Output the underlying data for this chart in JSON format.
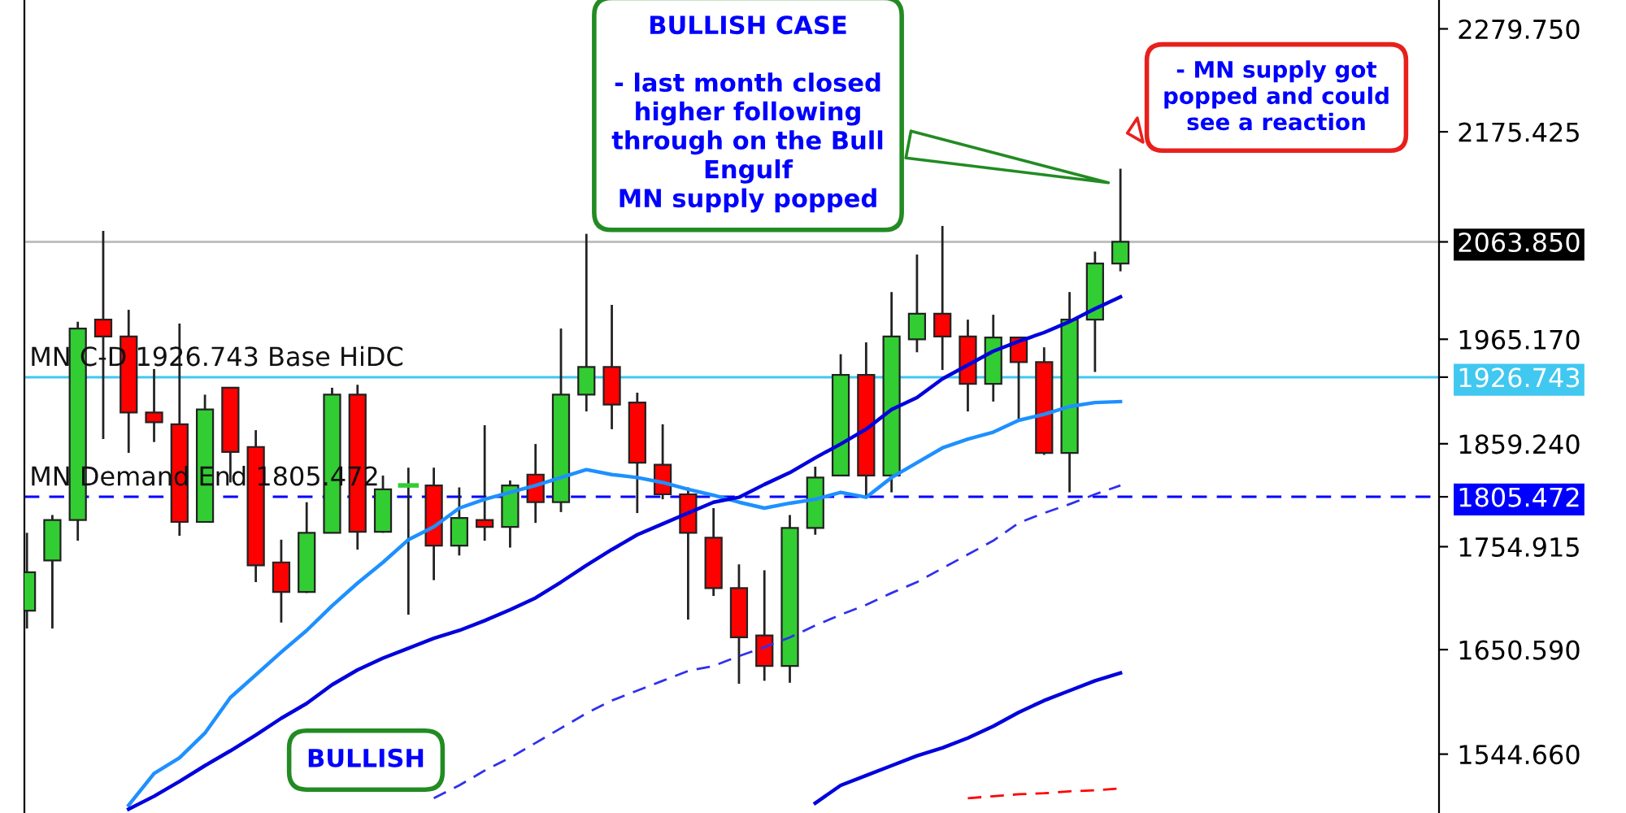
{
  "chart_data": {
    "type": "candlestick",
    "categories": [
      null,
      null,
      null,
      null,
      null,
      null,
      null,
      null,
      null,
      null,
      null,
      null,
      null,
      null,
      null,
      null,
      null,
      null,
      null,
      null,
      null,
      null,
      null,
      null,
      null,
      null,
      null,
      null,
      null,
      null,
      null,
      null,
      null,
      null,
      null,
      null,
      null,
      null,
      null,
      null,
      null,
      null,
      null,
      null
    ],
    "ohlc": [
      [
        1690,
        1769,
        1672,
        1729
      ],
      [
        1741,
        1787,
        1672,
        1782
      ],
      [
        1782,
        1983,
        1761,
        1976
      ],
      [
        1985,
        2075,
        1864,
        1968
      ],
      [
        1968,
        1995,
        1850,
        1891
      ],
      [
        1891,
        1935,
        1861,
        1881
      ],
      [
        1879,
        1981,
        1766,
        1780
      ],
      [
        1780,
        1909,
        1780,
        1894
      ],
      [
        1916,
        1916,
        1820,
        1851
      ],
      [
        1856,
        1873,
        1719,
        1736
      ],
      [
        1739,
        1762,
        1678,
        1709
      ],
      [
        1709,
        1800,
        1708,
        1769
      ],
      [
        1769,
        1916,
        1769,
        1909
      ],
      [
        1909,
        1919,
        1752,
        1770
      ],
      [
        1770,
        1827,
        1769,
        1813
      ],
      [
        1817,
        1835,
        1686,
        1817
      ],
      [
        1817,
        1835,
        1721,
        1756
      ],
      [
        1756,
        1815,
        1746,
        1784
      ],
      [
        1782,
        1878,
        1761,
        1775
      ],
      [
        1775,
        1822,
        1754,
        1817
      ],
      [
        1828,
        1859,
        1779,
        1800
      ],
      [
        1800,
        1976,
        1790,
        1909
      ],
      [
        1909,
        2072,
        1892,
        1937
      ],
      [
        1937,
        2000,
        1874,
        1899
      ],
      [
        1901,
        1911,
        1789,
        1840
      ],
      [
        1838,
        1879,
        1803,
        1808
      ],
      [
        1808,
        1815,
        1681,
        1769
      ],
      [
        1764,
        1794,
        1705,
        1713
      ],
      [
        1713,
        1737,
        1616,
        1663
      ],
      [
        1665,
        1731,
        1619,
        1634
      ],
      [
        1634,
        1787,
        1617,
        1774
      ],
      [
        1774,
        1836,
        1767,
        1825
      ],
      [
        1827,
        1950,
        1827,
        1929
      ],
      [
        1929,
        1962,
        1805,
        1827
      ],
      [
        1827,
        2013,
        1810,
        1968
      ],
      [
        1965,
        2051,
        1952,
        1991
      ],
      [
        1991,
        2080,
        1934,
        1968
      ],
      [
        1968,
        1985,
        1892,
        1920
      ],
      [
        1920,
        1990,
        1902,
        1967
      ],
      [
        1967,
        1967,
        1884,
        1942
      ],
      [
        1942,
        1957,
        1848,
        1850
      ],
      [
        1850,
        2013,
        1810,
        1985
      ],
      [
        1985,
        2054,
        1932,
        2042
      ],
      [
        2042,
        2138,
        2034,
        2064
      ]
    ],
    "colors": [
      "#32cd32",
      "#32cd32",
      "#32cd32",
      "#ff0000",
      "#ff0000",
      "#ff0000",
      "#ff0000",
      "#32cd32",
      "#ff0000",
      "#ff0000",
      "#ff0000",
      "#32cd32",
      "#32cd32",
      "#ff0000",
      "#32cd32",
      "#32cd32",
      "#ff0000",
      "#32cd32",
      "#ff0000",
      "#32cd32",
      "#ff0000",
      "#32cd32",
      "#32cd32",
      "#ff0000",
      "#ff0000",
      "#ff0000",
      "#ff0000",
      "#ff0000",
      "#ff0000",
      "#ff0000",
      "#32cd32",
      "#32cd32",
      "#32cd32",
      "#ff0000",
      "#32cd32",
      "#32cd32",
      "#ff0000",
      "#ff0000",
      "#32cd32",
      "#ff0000",
      "#ff0000",
      "#32cd32",
      "#32cd32",
      "#32cd32"
    ],
    "series": [
      {
        "type": "line",
        "color": "#1e90ff",
        "values": [
          null,
          null,
          null,
          null,
          1493,
          1525,
          1541,
          1566,
          1602,
          1625,
          1648,
          1670,
          1695,
          1718,
          1739,
          1762,
          1775,
          1794,
          1803,
          1810,
          1817,
          1825,
          1833,
          1828,
          1825,
          1820,
          1813,
          1807,
          1800,
          1794,
          1799,
          1803,
          1810,
          1805,
          1825,
          1840,
          1855,
          1864,
          1871,
          1883,
          1889,
          1897,
          1901,
          1902
        ]
      },
      {
        "type": "line",
        "color": "#0000dd",
        "values": [
          null,
          null,
          null,
          null,
          1489,
          1502,
          1517,
          1533,
          1548,
          1564,
          1581,
          1596,
          1615,
          1630,
          1642,
          1652,
          1662,
          1670,
          1680,
          1691,
          1703,
          1719,
          1736,
          1752,
          1767,
          1778,
          1789,
          1800,
          1805,
          1818,
          1830,
          1845,
          1859,
          1874,
          1894,
          1906,
          1925,
          1939,
          1953,
          1963,
          1972,
          1983,
          1996,
          2008
        ]
      },
      {
        "type": "line",
        "color": "#3030ee",
        "line_style": "dashed",
        "values": [
          null,
          null,
          null,
          null,
          null,
          null,
          null,
          null,
          null,
          null,
          null,
          null,
          null,
          null,
          null,
          null,
          1500,
          1513,
          1528,
          1541,
          1556,
          1571,
          1586,
          1599,
          1609,
          1619,
          1629,
          1634,
          1644,
          1653,
          1663,
          1675,
          1686,
          1696,
          1708,
          1719,
          1733,
          1747,
          1761,
          1779,
          1789,
          1798,
          1808,
          1817
        ]
      },
      {
        "type": "line",
        "color": "#0000dd",
        "values": [
          null,
          null,
          null,
          null,
          null,
          null,
          null,
          null,
          null,
          null,
          null,
          null,
          null,
          null,
          null,
          null,
          null,
          null,
          null,
          null,
          null,
          null,
          null,
          null,
          null,
          null,
          null,
          null,
          null,
          null,
          null,
          1495,
          1513,
          1523,
          1533,
          1543,
          1551,
          1561,
          1573,
          1587,
          1599,
          1609,
          1619,
          1627
        ]
      },
      {
        "type": "line",
        "color": "#ff0000",
        "line_style": "dashed",
        "values": [
          null,
          null,
          null,
          null,
          null,
          null,
          null,
          null,
          null,
          null,
          null,
          null,
          null,
          null,
          null,
          null,
          null,
          null,
          null,
          null,
          null,
          null,
          null,
          null,
          null,
          null,
          null,
          null,
          null,
          null,
          null,
          null,
          null,
          null,
          null,
          null,
          null,
          1500,
          1502,
          1504,
          1505,
          1507,
          1508,
          1510
        ]
      }
    ],
    "ylim": [
      1485,
      2309
    ],
    "yticks": [
      {
        "value": 1544.66,
        "label": "1544.660"
      },
      {
        "value": 1650.59,
        "label": "1650.590"
      },
      {
        "value": 1754.915,
        "label": "1754.915"
      },
      {
        "value": 1805.472,
        "label": "1805.472"
      },
      {
        "value": 1859.24,
        "label": "1859.240"
      },
      {
        "value": 1926.743,
        "label": "1926.743"
      },
      {
        "value": 1965.17,
        "label": "1965.170"
      },
      {
        "value": 2063.85,
        "label": "2063.850"
      },
      {
        "value": 2175.425,
        "label": "2175.425"
      },
      {
        "value": 2279.75,
        "label": "2279.750"
      }
    ],
    "ref_lines": [
      {
        "axis": "y",
        "value": 1926.743,
        "label": "MN C-D 1926.743 Base HiDC",
        "color": "#40c8f0",
        "line_style": "solid"
      },
      {
        "axis": "y",
        "value": 1805.472,
        "label": "MN Demand End 1805.472",
        "color": "#0000ff",
        "line_style": "dashed"
      },
      {
        "axis": "y",
        "value": 2063.85,
        "color": "#c0c0c0",
        "line_style": "solid"
      }
    ],
    "annotations": [
      "BULLISH CASE\n\n- last month closed\nhigher following\nthrough on the Bull\nEngulf\nMN supply popped",
      "- MN supply got\npopped and could\nsee a reaction",
      "BULLISH"
    ],
    "tick_labels": "y",
    "grid": false,
    "legend": false
  }
}
